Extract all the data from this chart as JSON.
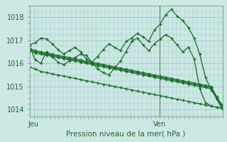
{
  "xlabel": "Pression niveau de la mer( hPa )",
  "bg_color": "#cce8e4",
  "grid_color": "#a0ccc8",
  "line_color": "#1a6b2a",
  "vline_color": "#5a7a6a",
  "ylim": [
    1013.7,
    1018.5
  ],
  "xlim": [
    0,
    46
  ],
  "xtick_positions": [
    1,
    31
  ],
  "xtick_labels": [
    "Jeu",
    "Ven"
  ],
  "ytick_positions": [
    1014,
    1015,
    1016,
    1017,
    1018
  ],
  "vline_x": 31,
  "series": [
    [
      1016.8,
      1016.9,
      1017.1,
      1017.05,
      1016.85,
      1016.6,
      1016.4,
      1016.55,
      1016.7,
      1016.5,
      1016.2,
      1016.05,
      1016.3,
      1016.6,
      1016.85,
      1016.7,
      1016.55,
      1016.95,
      1017.1,
      1017.3,
      1017.15,
      1016.95,
      1017.45,
      1017.7,
      1018.1,
      1018.35,
      1018.05,
      1017.85,
      1017.55,
      1017.1,
      1016.4,
      1015.4,
      1014.85,
      1014.5,
      1014.2
    ],
    [
      1016.65,
      1016.55,
      1016.5,
      1016.45,
      1016.4,
      1016.35,
      1016.3,
      1016.25,
      1016.2,
      1016.15,
      1016.1,
      1016.05,
      1016.0,
      1015.95,
      1015.9,
      1015.85,
      1015.8,
      1015.75,
      1015.7,
      1015.65,
      1015.6,
      1015.55,
      1015.5,
      1015.45,
      1015.4,
      1015.35,
      1015.3,
      1015.25,
      1015.2,
      1015.15,
      1015.1,
      1015.05,
      1015.0,
      1014.55,
      1014.1
    ],
    [
      1016.6,
      1016.5,
      1016.45,
      1016.4,
      1016.35,
      1016.3,
      1016.25,
      1016.2,
      1016.15,
      1016.1,
      1016.05,
      1016.0,
      1015.95,
      1015.9,
      1015.85,
      1015.8,
      1015.75,
      1015.7,
      1015.65,
      1015.6,
      1015.55,
      1015.5,
      1015.45,
      1015.4,
      1015.35,
      1015.3,
      1015.25,
      1015.2,
      1015.15,
      1015.1,
      1015.05,
      1015.0,
      1014.95,
      1014.5,
      1014.05
    ],
    [
      1016.55,
      1016.45,
      1016.4,
      1016.35,
      1016.3,
      1016.25,
      1016.2,
      1016.15,
      1016.1,
      1016.05,
      1016.0,
      1015.95,
      1015.9,
      1015.85,
      1015.8,
      1015.75,
      1015.7,
      1015.65,
      1015.6,
      1015.55,
      1015.5,
      1015.45,
      1015.4,
      1015.35,
      1015.3,
      1015.25,
      1015.2,
      1015.15,
      1015.1,
      1015.05,
      1015.0,
      1014.95,
      1014.9,
      1014.45,
      1014.0
    ],
    [
      1015.85,
      1015.75,
      1015.65,
      1015.6,
      1015.55,
      1015.5,
      1015.45,
      1015.4,
      1015.35,
      1015.3,
      1015.25,
      1015.2,
      1015.15,
      1015.1,
      1015.05,
      1015.0,
      1014.95,
      1014.9,
      1014.85,
      1014.8,
      1014.75,
      1014.7,
      1014.65,
      1014.6,
      1014.55,
      1014.5,
      1014.45,
      1014.4,
      1014.35,
      1014.3,
      1014.25,
      1014.2,
      1014.15,
      1014.1,
      1014.05
    ],
    [
      1016.75,
      1016.15,
      1016.0,
      1016.5,
      1016.3,
      1016.05,
      1015.95,
      1016.1,
      1016.25,
      1016.4,
      1016.35,
      1016.05,
      1015.75,
      1015.6,
      1015.5,
      1015.8,
      1016.1,
      1016.5,
      1016.95,
      1017.1,
      1016.8,
      1016.55,
      1016.85,
      1017.05,
      1017.25,
      1017.1,
      1016.8,
      1016.5,
      1016.7,
      1016.2,
      1014.9,
      1014.3,
      1014.15,
      1014.1,
      1014.05
    ]
  ],
  "marker": "+",
  "markersize": 3.5,
  "linewidth": 0.9
}
